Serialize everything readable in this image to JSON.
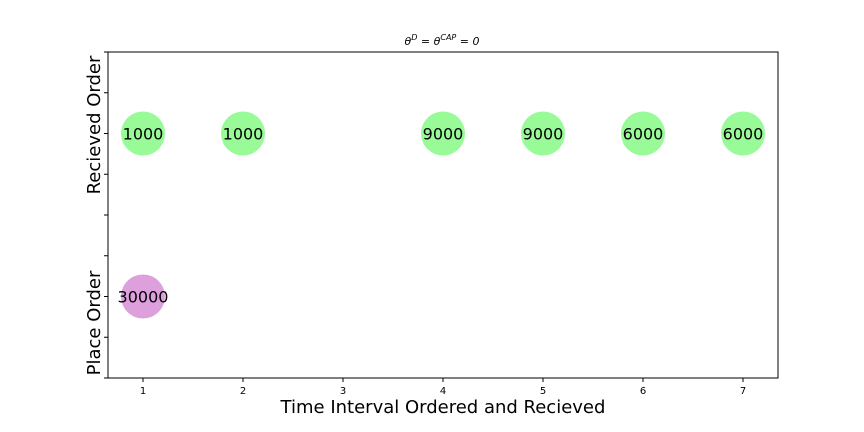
{
  "chart_data": {
    "type": "scatter",
    "title": "θ^D = θ^CAP = 0",
    "title_parts": {
      "theta": "θ",
      "sup_d": "D",
      "eq": " = ",
      "sup_cap": "CAP",
      "tail": " = 0"
    },
    "xlabel": "Time Interval Ordered and Recieved",
    "y_category_labels": [
      "Place Order",
      "Recieved Order"
    ],
    "x_ticks": [
      1,
      2,
      3,
      4,
      5,
      6,
      7
    ],
    "xlim": [
      0.65,
      7.35
    ],
    "ylim": [
      0,
      4
    ],
    "grid": false,
    "colors": {
      "placed": "#dda0dd",
      "received": "#98fb98"
    },
    "series": [
      {
        "category": "Place Order",
        "color_key": "placed",
        "points": [
          {
            "x": 1,
            "y": 1,
            "label": "30000"
          }
        ]
      },
      {
        "category": "Recieved Order",
        "color_key": "received",
        "points": [
          {
            "x": 1,
            "y": 3,
            "label": "1000"
          },
          {
            "x": 2,
            "y": 3,
            "label": "1000"
          },
          {
            "x": 4,
            "y": 3,
            "label": "9000"
          },
          {
            "x": 5,
            "y": 3,
            "label": "9000"
          },
          {
            "x": 6,
            "y": 3,
            "label": "6000"
          },
          {
            "x": 7,
            "y": 3,
            "label": "6000"
          }
        ]
      }
    ]
  }
}
